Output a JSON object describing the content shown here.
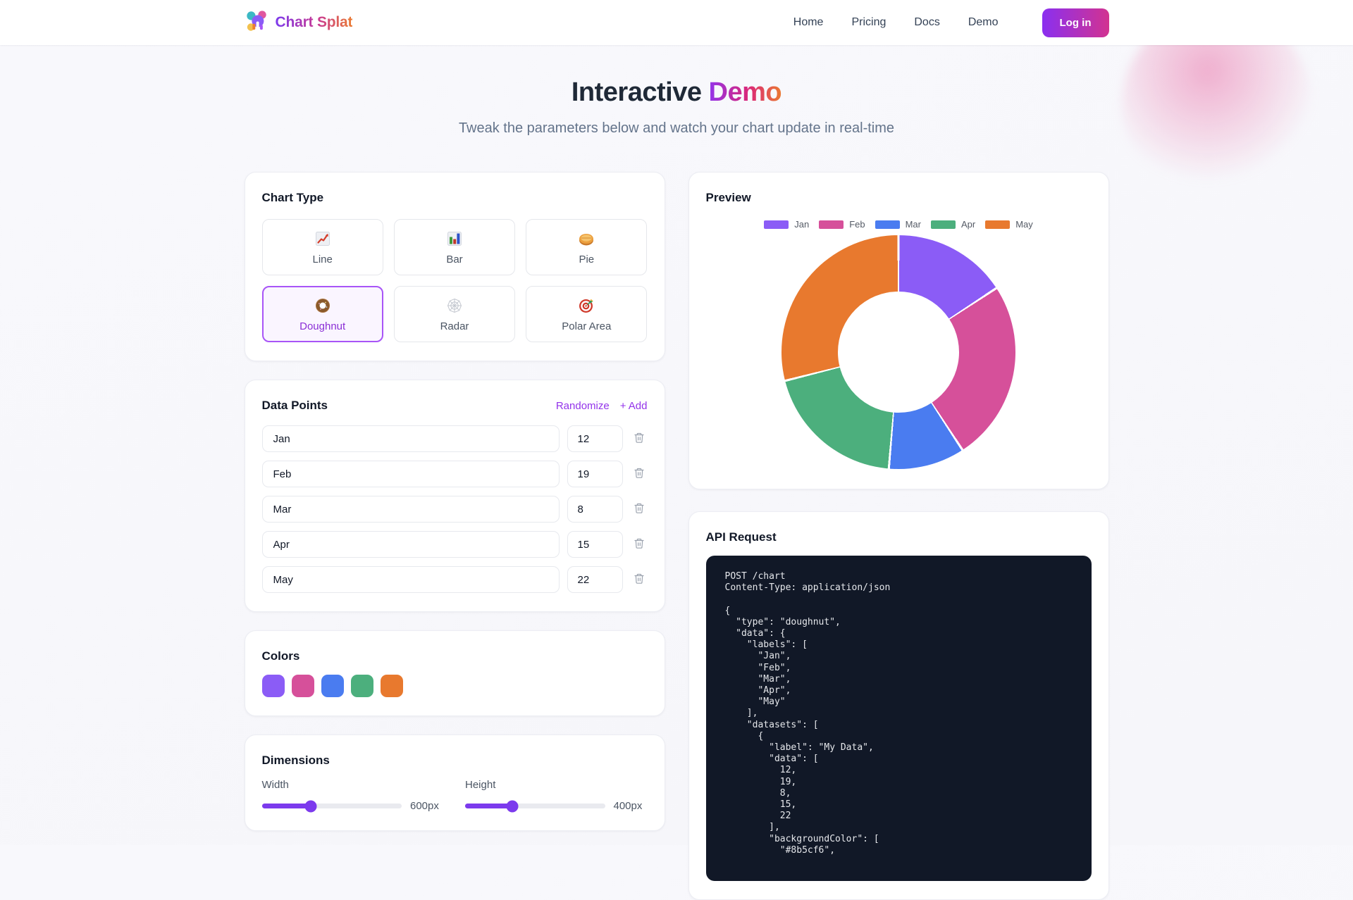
{
  "header": {
    "brand": {
      "part1": "Chart",
      "part2": "Splat",
      "logo_icon": "chart-splat-logo-icon"
    },
    "nav": [
      {
        "label": "Home"
      },
      {
        "label": "Pricing"
      },
      {
        "label": "Docs"
      },
      {
        "label": "Demo"
      }
    ],
    "login_label": "Log in"
  },
  "hero": {
    "title_regular": "Interactive",
    "title_accent": "Demo",
    "subtitle": "Tweak the parameters below and watch your chart update in real-time"
  },
  "chart_type": {
    "title": "Chart Type",
    "options": [
      {
        "label": "Line",
        "icon": "line-chart-icon",
        "selected": false
      },
      {
        "label": "Bar",
        "icon": "bar-chart-icon",
        "selected": false
      },
      {
        "label": "Pie",
        "icon": "pie-icon",
        "selected": false
      },
      {
        "label": "Doughnut",
        "icon": "doughnut-icon",
        "selected": true
      },
      {
        "label": "Radar",
        "icon": "radar-web-icon",
        "selected": false
      },
      {
        "label": "Polar Area",
        "icon": "polar-target-icon",
        "selected": false
      }
    ]
  },
  "data_points": {
    "title": "Data Points",
    "randomize_label": "Randomize",
    "add_label": "+ Add",
    "rows": [
      {
        "label": "Jan",
        "value": "12"
      },
      {
        "label": "Feb",
        "value": "19"
      },
      {
        "label": "Mar",
        "value": "8"
      },
      {
        "label": "Apr",
        "value": "15"
      },
      {
        "label": "May",
        "value": "22"
      }
    ]
  },
  "colors": {
    "title": "Colors",
    "swatches": [
      "#8b5cf6",
      "#d6509a",
      "#4a7cf0",
      "#4caf7d",
      "#e8792e"
    ]
  },
  "dimensions": {
    "title": "Dimensions",
    "width": {
      "label": "Width",
      "value": "600px",
      "percent": 35
    },
    "height": {
      "label": "Height",
      "value": "400px",
      "percent": 34
    }
  },
  "preview": {
    "title": "Preview"
  },
  "chart_data": {
    "type": "pie",
    "variant": "doughnut",
    "title": "Preview",
    "categories": [
      "Jan",
      "Feb",
      "Mar",
      "Apr",
      "May"
    ],
    "values": [
      12,
      19,
      8,
      15,
      22
    ],
    "colors": [
      "#8b5cf6",
      "#d6509a",
      "#4a7cf0",
      "#4caf7d",
      "#e8792e"
    ],
    "dataset_label": "My Data",
    "legend_position": "top",
    "inner_radius_ratio": 0.52
  },
  "api_request": {
    "title": "API Request",
    "code_lines": [
      "POST /chart",
      "Content-Type: application/json",
      "",
      "{",
      "  \"type\": \"doughnut\",",
      "  \"data\": {",
      "    \"labels\": [",
      "      \"Jan\",",
      "      \"Feb\",",
      "      \"Mar\",",
      "      \"Apr\",",
      "      \"May\"",
      "    ],",
      "    \"datasets\": [",
      "      {",
      "        \"label\": \"My Data\",",
      "        \"data\": [",
      "          12,",
      "          19,",
      "          8,",
      "          15,",
      "          22",
      "        ],",
      "        \"backgroundColor\": [",
      "          \"#8b5cf6\","
    ]
  }
}
